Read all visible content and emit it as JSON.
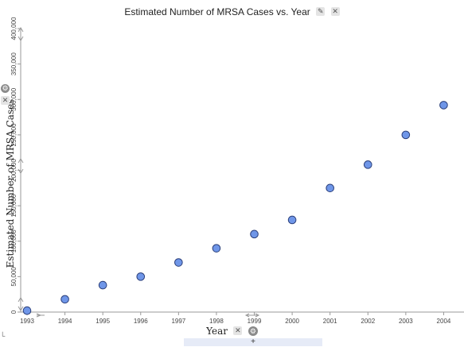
{
  "chart_data": {
    "type": "scatter",
    "title": "Estimated Number of MRSA Cases vs. Year",
    "xlabel": "Year",
    "ylabel": "Estimated Number of MRSA Cases",
    "xlim": [
      1993,
      2004.6
    ],
    "ylim": [
      0,
      400000
    ],
    "x_ticks": [
      "1993",
      "1994",
      "1995",
      "1996",
      "1997",
      "1998",
      "1999",
      "2000",
      "2001",
      "2002",
      "2003",
      "2004"
    ],
    "y_ticks": [
      "0",
      "50,000",
      "100,000",
      "150,000",
      "200,000",
      "250,000",
      "300,000",
      "350,000",
      "400,000"
    ],
    "x_tick_values": [
      1993,
      1994,
      1995,
      1996,
      1997,
      1998,
      1999,
      2000,
      2001,
      2002,
      2003,
      2004
    ],
    "y_tick_values": [
      0,
      50000,
      100000,
      150000,
      200000,
      250000,
      300000,
      350000,
      400000
    ],
    "points": [
      {
        "x": 1993,
        "y": 2000
      },
      {
        "x": 1994,
        "y": 18000
      },
      {
        "x": 1995,
        "y": 38000
      },
      {
        "x": 1996,
        "y": 50000
      },
      {
        "x": 1997,
        "y": 70000
      },
      {
        "x": 1998,
        "y": 90000
      },
      {
        "x": 1999,
        "y": 110000
      },
      {
        "x": 2000,
        "y": 130000
      },
      {
        "x": 2001,
        "y": 175000
      },
      {
        "x": 2002,
        "y": 208000
      },
      {
        "x": 2003,
        "y": 250000
      },
      {
        "x": 2004,
        "y": 292000
      }
    ],
    "marker_color": "#6f96e8",
    "marker_edge_color": "#2b3f7a",
    "grid": false
  },
  "controls": {
    "edit_icon": "pencil-icon",
    "edit_glyph": "✎",
    "close_glyph": "✕",
    "settings_icon": "gear-icon",
    "settings_glyph": "⚙",
    "add_glyph": "+"
  }
}
